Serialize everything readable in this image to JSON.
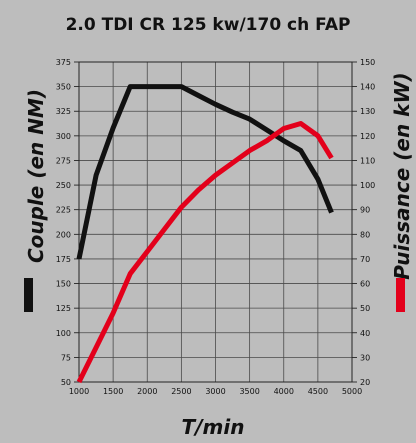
{
  "chart_data": {
    "type": "line",
    "title": "2.0 TDI CR 125 kw/170 ch FAP",
    "xlabel": "T/min",
    "ylabel_left": "Couple (en NM)",
    "ylabel_right": "Puissance (en kW)",
    "xlim": [
      1000,
      5000
    ],
    "ylim_left": [
      50,
      375
    ],
    "ylim_right": [
      20,
      150
    ],
    "x_ticks": [
      1000,
      1500,
      2000,
      2500,
      3000,
      3500,
      4000,
      4500,
      5000
    ],
    "y_left_ticks": [
      50,
      75,
      100,
      125,
      150,
      175,
      200,
      225,
      250,
      275,
      300,
      325,
      350,
      375
    ],
    "y_right_ticks": [
      20,
      30,
      40,
      50,
      60,
      70,
      80,
      90,
      100,
      110,
      120,
      130,
      140,
      150
    ],
    "grid": true,
    "series": [
      {
        "name": "Couple (en NM)",
        "axis": "left",
        "color": "#111111",
        "points": [
          [
            1000,
            175
          ],
          [
            1250,
            260
          ],
          [
            1500,
            308
          ],
          [
            1750,
            350
          ],
          [
            2000,
            350
          ],
          [
            2250,
            350
          ],
          [
            2500,
            350
          ],
          [
            2750,
            341
          ],
          [
            3000,
            332
          ],
          [
            3250,
            324
          ],
          [
            3500,
            317
          ],
          [
            3750,
            306
          ],
          [
            4000,
            295
          ],
          [
            4250,
            285
          ],
          [
            4500,
            256
          ],
          [
            4700,
            222
          ]
        ]
      },
      {
        "name": "Puissance (en kW)",
        "axis": "right",
        "color": "#e3001b",
        "points": [
          [
            1000,
            20
          ],
          [
            1250,
            34
          ],
          [
            1500,
            48
          ],
          [
            1750,
            64
          ],
          [
            2000,
            73
          ],
          [
            2250,
            82
          ],
          [
            2500,
            91
          ],
          [
            2750,
            98
          ],
          [
            3000,
            104
          ],
          [
            3250,
            109
          ],
          [
            3500,
            114
          ],
          [
            3750,
            118
          ],
          [
            4000,
            123
          ],
          [
            4250,
            125
          ],
          [
            4500,
            120
          ],
          [
            4700,
            111
          ]
        ]
      }
    ]
  }
}
